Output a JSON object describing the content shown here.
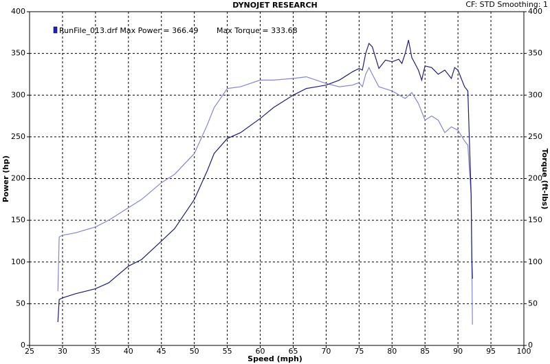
{
  "chart_data": {
    "type": "line",
    "title": "DYNOJET RESEARCH",
    "subtitle": "CF: STD  Smoothing: 1",
    "legend": [
      "RunFile_013.drf Max Power = 366.49",
      "Max Torque = 333.68"
    ],
    "x_label": "Speed (mph)",
    "y_label": "Power (hp)",
    "y2_label": "Torque (ft-lbs)",
    "xlim": [
      25,
      100
    ],
    "xticks": [
      25,
      30,
      35,
      40,
      45,
      50,
      55,
      60,
      65,
      70,
      75,
      80,
      85,
      90,
      95,
      100
    ],
    "ylim": [
      0,
      400
    ],
    "yticks": [
      0,
      50,
      100,
      150,
      200,
      250,
      300,
      350,
      400
    ],
    "y2lim": [
      0,
      400
    ],
    "y2ticks": [
      0,
      50,
      100,
      150,
      200,
      250,
      300,
      350,
      400
    ],
    "grid": true,
    "series": [
      {
        "color": "#1c1c7a",
        "x": [
          29.3,
          29.5,
          30,
          32,
          35,
          37,
          40,
          42,
          45,
          47,
          50,
          52,
          53,
          55,
          57,
          60,
          62,
          65,
          67,
          70,
          72,
          74,
          75,
          75.5,
          76,
          76.5,
          77,
          77.5,
          78,
          79,
          80,
          81,
          81.5,
          82,
          82.5,
          83,
          84,
          84.5,
          85,
          86,
          87,
          88,
          89,
          89.5,
          90,
          90.5,
          91,
          91.5,
          92,
          92.1,
          92.2
        ],
        "values": [
          28,
          55,
          57,
          62,
          68,
          75,
          95,
          103,
          125,
          140,
          175,
          210,
          230,
          248,
          255,
          272,
          285,
          300,
          308,
          312,
          318,
          328,
          332,
          330,
          350,
          362,
          358,
          345,
          332,
          342,
          340,
          343,
          338,
          350,
          366,
          345,
          330,
          318,
          335,
          333,
          325,
          330,
          320,
          333,
          330,
          320,
          310,
          305,
          180,
          105,
          80
        ]
      },
      {
        "color": "#8484d4",
        "axis": "y2",
        "x": [
          29.3,
          29.5,
          30,
          32,
          35,
          37,
          40,
          42,
          45,
          47,
          50,
          52,
          53,
          55,
          57,
          60,
          62,
          65,
          67,
          70,
          72,
          74,
          75,
          75.5,
          76,
          76.5,
          77,
          78,
          80,
          82,
          83,
          84,
          85,
          86,
          87,
          88,
          89,
          90,
          91,
          91.5,
          92,
          92.2
        ],
        "values": [
          65,
          130,
          132,
          135,
          142,
          150,
          165,
          175,
          195,
          205,
          230,
          265,
          285,
          308,
          310,
          318,
          318,
          320,
          322,
          314,
          310,
          312,
          315,
          310,
          325,
          333,
          325,
          310,
          305,
          296,
          303,
          290,
          270,
          275,
          270,
          255,
          262,
          258,
          245,
          240,
          180,
          25
        ]
      }
    ]
  }
}
